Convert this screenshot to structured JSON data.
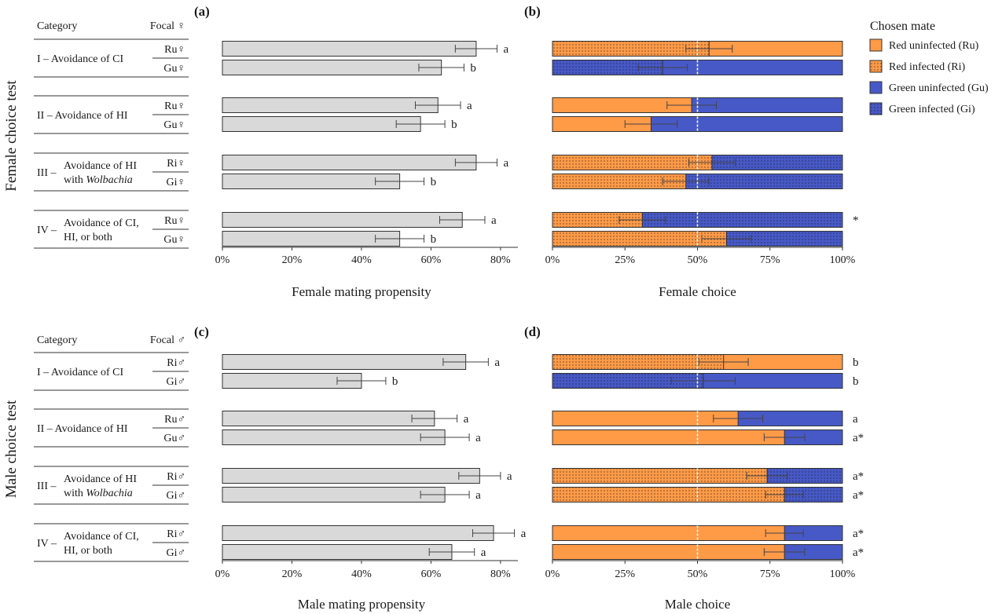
{
  "colors": {
    "red": "#ff9a47",
    "blue": "#4759c7",
    "prop_bar": "#d9d9d9"
  },
  "legend": {
    "title": "Chosen mate",
    "items": [
      {
        "label": "Red uninfected (Ru)",
        "color": "#ff9a47",
        "dotted": false
      },
      {
        "label": "Red infected (Ri)",
        "color": "#ff9a47",
        "dotted": true
      },
      {
        "label": "Green uninfected (Gu)",
        "color": "#4759c7",
        "dotted": false
      },
      {
        "label": "Green infected (Gi)",
        "color": "#4759c7",
        "dotted": true
      }
    ]
  },
  "sections": [
    {
      "id": "female",
      "side_label": "Female choice test",
      "header": {
        "category": "Category",
        "focal": "Focal ♀"
      },
      "rows": [
        {
          "cat1": "I – Avoidance of CI",
          "cat2": "",
          "cat2_italic": "",
          "focal": [
            "Ru♀",
            "Gu♀"
          ]
        },
        {
          "cat1": "II – Avoidance of HI",
          "cat2": "",
          "cat2_italic": "",
          "focal": [
            "Ru♀",
            "Gu♀"
          ]
        },
        {
          "cat1": "Avoidance of HI",
          "prefix": "III –",
          "cat2": "with ",
          "cat2_italic": "Wolbachia",
          "focal": [
            "Ri♀",
            "Gi♀"
          ]
        },
        {
          "cat1": "Avoidance of CI,",
          "prefix": "IV –",
          "cat2": "HI, or both",
          "cat2_italic": "",
          "focal": [
            "Ru♀",
            "Gu♀"
          ]
        }
      ]
    },
    {
      "id": "male",
      "side_label": "Male choice test",
      "header": {
        "category": "Category",
        "focal": "Focal ♂"
      },
      "rows": [
        {
          "cat1": "I – Avoidance of CI",
          "cat2": "",
          "cat2_italic": "",
          "focal": [
            "Ri♂",
            "Gi♂"
          ]
        },
        {
          "cat1": "II – Avoidance of HI",
          "cat2": "",
          "cat2_italic": "",
          "focal": [
            "Ru♂",
            "Gu♂"
          ]
        },
        {
          "cat1": "Avoidance of HI",
          "prefix": "III –",
          "cat2": "with ",
          "cat2_italic": "Wolbachia",
          "focal": [
            "Ri♂",
            "Gi♂"
          ]
        },
        {
          "cat1": "Avoidance of CI,",
          "prefix": "IV –",
          "cat2": "HI, or both",
          "cat2_italic": "",
          "focal": [
            "Ri♂",
            "Gi♂"
          ]
        }
      ]
    }
  ],
  "chart_data": [
    {
      "panel": "(a)",
      "type": "bar",
      "orientation": "horizontal",
      "xlabel": "Female mating propensity",
      "xlim": [
        0,
        85
      ],
      "xticks": [
        0,
        20,
        40,
        60,
        80
      ],
      "tick_suffix": "%",
      "categories": [
        "I Ru♀",
        "I Gu♀",
        "II Ru♀",
        "II Gu♀",
        "III Ri♀",
        "III Gi♀",
        "IV Ru♀",
        "IV Gu♀"
      ],
      "values": [
        73,
        63,
        62,
        57,
        73,
        51,
        69,
        51
      ],
      "errors": [
        6,
        6.5,
        6.5,
        7,
        6,
        7,
        6.5,
        7
      ],
      "letters": [
        "a",
        "b",
        "a",
        "b",
        "a",
        "b",
        "a",
        "b"
      ]
    },
    {
      "panel": "(b)",
      "type": "bar",
      "orientation": "horizontal",
      "stacked": true,
      "xlabel": "Female choice",
      "xlim": [
        0,
        100
      ],
      "xticks": [
        0,
        25,
        50,
        75,
        100
      ],
      "tick_suffix": "%",
      "reference_line": 50,
      "categories": [
        "I Ru♀",
        "I Gu♀",
        "II Ru♀",
        "II Gu♀",
        "III Ri♀",
        "III Gi♀",
        "IV Ru♀",
        "IV Gu♀"
      ],
      "series": [
        {
          "values": [
            54,
            38,
            48,
            34,
            55,
            46,
            31,
            60
          ],
          "types": [
            "Ri",
            "Gi",
            "Ru",
            "Ru",
            "Ri",
            "Ri",
            "Ri",
            "Ri"
          ]
        },
        {
          "values": [
            46,
            62,
            52,
            66,
            45,
            54,
            69,
            40
          ],
          "types": [
            "Ru",
            "Gu",
            "Gu",
            "Gu",
            "Gi",
            "Gi",
            "Gi",
            "Gi"
          ]
        }
      ],
      "errors": [
        8,
        8.5,
        8.5,
        9,
        8,
        8,
        8,
        8.5
      ],
      "letters": [
        "",
        "",
        "",
        "",
        "",
        "",
        "*",
        ""
      ]
    },
    {
      "panel": "(c)",
      "type": "bar",
      "orientation": "horizontal",
      "xlabel": "Male mating propensity",
      "xlim": [
        0,
        85
      ],
      "xticks": [
        0,
        20,
        40,
        60,
        80
      ],
      "tick_suffix": "%",
      "categories": [
        "I Ri♂",
        "I Gi♂",
        "II Ru♂",
        "II Gu♂",
        "III Ri♂",
        "III Gi♂",
        "IV Ri♂",
        "IV Gi♂"
      ],
      "values": [
        70,
        40,
        61,
        64,
        74,
        64,
        78,
        66
      ],
      "errors": [
        6.5,
        7,
        6.5,
        7,
        6,
        7,
        6,
        6.5
      ],
      "letters": [
        "a",
        "b",
        "a",
        "a",
        "a",
        "a",
        "a",
        "a"
      ]
    },
    {
      "panel": "(d)",
      "type": "bar",
      "orientation": "horizontal",
      "stacked": true,
      "xlabel": "Male choice",
      "xlim": [
        0,
        100
      ],
      "xticks": [
        0,
        25,
        50,
        75,
        100
      ],
      "tick_suffix": "%",
      "reference_line": 50,
      "categories": [
        "I Ri♂",
        "I Gi♂",
        "II Ru♂",
        "II Gu♂",
        "III Ri♂",
        "III Gi♂",
        "IV Ri♂",
        "IV Gi♂"
      ],
      "series": [
        {
          "values": [
            59,
            52,
            64,
            80,
            74,
            80,
            80,
            80
          ],
          "types": [
            "Ri",
            "Gi",
            "Ru",
            "Ru",
            "Ri",
            "Ri",
            "Ru",
            "Ru"
          ]
        },
        {
          "values": [
            41,
            48,
            36,
            20,
            26,
            20,
            20,
            20
          ],
          "types": [
            "Ru",
            "Gu",
            "Gu",
            "Gu",
            "Gi",
            "Gi",
            "Gu",
            "Gu"
          ]
        }
      ],
      "errors": [
        8.5,
        11,
        8.5,
        7,
        7,
        6.5,
        6.5,
        7
      ],
      "letters": [
        "b",
        "b",
        "a",
        "a*",
        "a*",
        "a*",
        "a*",
        "a*"
      ]
    }
  ]
}
